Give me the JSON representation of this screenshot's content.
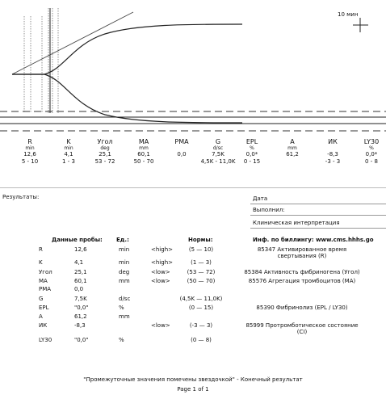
{
  "trace": {
    "scale_label": "10 мин"
  },
  "parameters": [
    {
      "name": "R",
      "unit": "min",
      "value": "12,6",
      "range": "5 - 10"
    },
    {
      "name": "K",
      "unit": "min",
      "value": "4,1",
      "range": "1 - 3"
    },
    {
      "name": "Угол",
      "unit": "deg",
      "value": "25,1",
      "range": "53 - 72"
    },
    {
      "name": "MA",
      "unit": "mm",
      "value": "60,1",
      "range": "50 - 70"
    },
    {
      "name": "PMA",
      "value": "0,0"
    },
    {
      "name": "G",
      "unit": "d/sc",
      "value": "7,5K",
      "range": "4,5K - 11,0K"
    },
    {
      "name": "EPL",
      "unit": "%",
      "value": "0,0*",
      "range": "0 - 15"
    },
    {
      "name": "A",
      "unit": "mm",
      "value": "61,2"
    },
    {
      "name": "ИК",
      "value": "-8,3",
      "range": "-3 - 3"
    },
    {
      "name": "LY30",
      "unit": "%",
      "value": "0,0*",
      "range": "0 - 8"
    }
  ],
  "results": {
    "label": "Результаты:",
    "date": "Дата",
    "performed_by": "Выполнил:",
    "interpretation": "Клиническая интерпретация"
  },
  "table": {
    "header": [
      "Данные пробы:",
      "Ед.:",
      "Нормы:",
      "Инф. по биллингу: www.cms.hhhs.go"
    ],
    "rows": [
      {
        "name": "R",
        "value": "12,6",
        "unit": "min",
        "flag": "<high>",
        "norm": "(5 — 10)",
        "billing": "85347 Активированное время свертывания (R)"
      },
      {
        "name": "K",
        "value": "4,1",
        "unit": "min",
        "flag": "<high>",
        "norm": "(1 — 3)"
      },
      {
        "name": "Угол",
        "value": "25,1",
        "unit": "deg",
        "flag": "<low>",
        "norm": "(53 — 72)",
        "billing": "85384 Активность фибриногена (Угол)"
      },
      {
        "name": "MA",
        "value": "60,1",
        "unit": "mm",
        "flag": "<low>",
        "norm": "(50 — 70)",
        "billing": "85576 Агрегация тромбоцитов (MA)"
      },
      {
        "name": "PMA",
        "value": "0,0"
      },
      {
        "name": "G",
        "value": "7,5K",
        "unit": "d/sc",
        "norm": "(4,5K — 11,0K)"
      },
      {
        "name": "EPL",
        "value": "\"0,0\"",
        "unit": "%",
        "norm": "(0 — 15)",
        "billing": "85390 Фибринолиз (EPL / LY30)"
      },
      {
        "name": "A",
        "value": "61,2",
        "unit": "mm"
      },
      {
        "name": "ИК",
        "value": "-8,3",
        "flag": "<low>",
        "norm": "(-3 — 3)",
        "billing": "85999 Протромботическое состояние (CI)"
      },
      {
        "name": "LY30",
        "value": "\"0,0\"",
        "unit": "%",
        "norm": "(0 — 8)"
      }
    ]
  },
  "footer": {
    "note": "\"Промежуточные значения помечены звездочкой\" - Конечный результат",
    "page": "Page 1 of 1"
  }
}
